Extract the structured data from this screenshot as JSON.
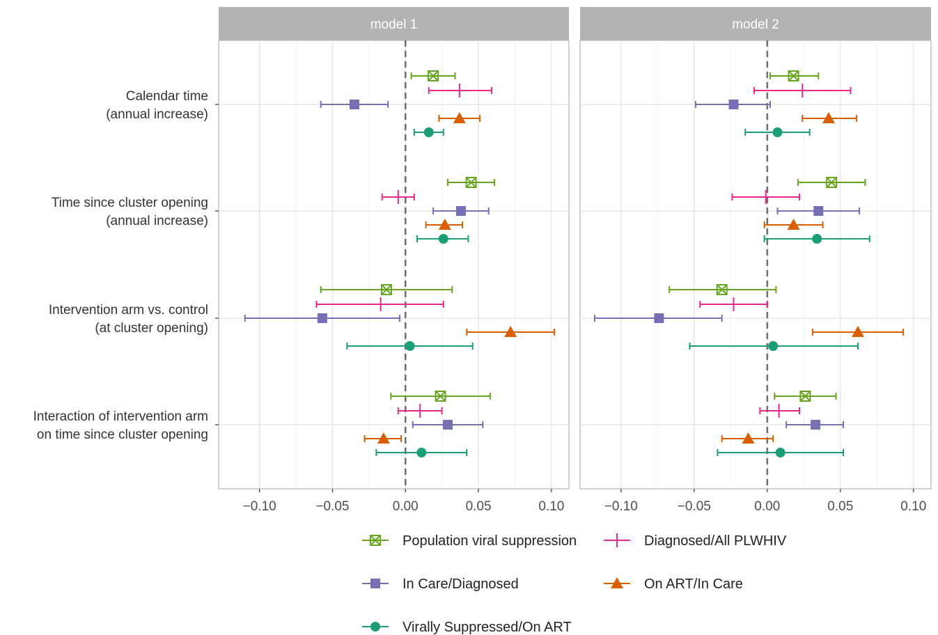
{
  "chart_data": {
    "type": "forest",
    "x_ticks": [
      "−0.10",
      "−0.05",
      "0.00",
      "0.05",
      "0.10"
    ],
    "x_tick_values": [
      -0.1,
      -0.05,
      0.0,
      0.05,
      0.1
    ],
    "xlim": [
      -0.128,
      0.112
    ],
    "reference_line": 0,
    "grid": true,
    "legend_position": "bottom",
    "categories": [
      "Calendar time\n(annual increase)",
      "Time since cluster opening\n(annual increase)",
      "Intervention arm vs. control\n(at cluster opening)",
      "Interaction of intervention arm\non time since cluster opening"
    ],
    "series": [
      {
        "name": "Population viral suppression",
        "color": "#66a61e",
        "marker": "boxed-x"
      },
      {
        "name": "Diagnosed/All PLWHIV",
        "color": "#e7298a",
        "marker": "bar"
      },
      {
        "name": "In Care/Diagnosed",
        "color": "#7570b3",
        "marker": "square"
      },
      {
        "name": "On ART/In Care",
        "color": "#d95f02",
        "marker": "triangle"
      },
      {
        "name": "Virally Suppressed/On ART",
        "color": "#1b9e77",
        "marker": "circle"
      }
    ],
    "panels": [
      {
        "title": "model 1",
        "estimates": [
          [
            [
              0.019,
              0.004,
              0.034
            ],
            [
              0.037,
              0.016,
              0.059
            ],
            [
              -0.035,
              -0.058,
              -0.012
            ],
            [
              0.037,
              0.023,
              0.051
            ],
            [
              0.016,
              0.006,
              0.026
            ]
          ],
          [
            [
              0.045,
              0.029,
              0.061
            ],
            [
              -0.005,
              -0.016,
              0.006
            ],
            [
              0.038,
              0.019,
              0.057
            ],
            [
              0.027,
              0.014,
              0.039
            ],
            [
              0.026,
              0.008,
              0.043
            ]
          ],
          [
            [
              -0.013,
              -0.058,
              0.032
            ],
            [
              -0.017,
              -0.061,
              0.026
            ],
            [
              -0.057,
              -0.11,
              -0.004
            ],
            [
              0.072,
              0.042,
              0.102
            ],
            [
              0.003,
              -0.04,
              0.046
            ]
          ],
          [
            [
              0.024,
              -0.01,
              0.058
            ],
            [
              0.01,
              -0.005,
              0.025
            ],
            [
              0.029,
              0.005,
              0.053
            ],
            [
              -0.015,
              -0.028,
              -0.003
            ],
            [
              0.011,
              -0.02,
              0.042
            ]
          ]
        ]
      },
      {
        "title": "model 2",
        "estimates": [
          [
            [
              0.018,
              0.002,
              0.035
            ],
            [
              0.024,
              -0.009,
              0.057
            ],
            [
              -0.023,
              -0.049,
              0.002
            ],
            [
              0.042,
              0.024,
              0.061
            ],
            [
              0.007,
              -0.015,
              0.029
            ]
          ],
          [
            [
              0.044,
              0.021,
              0.067
            ],
            [
              -0.001,
              -0.024,
              0.022
            ],
            [
              0.035,
              0.007,
              0.063
            ],
            [
              0.018,
              -0.002,
              0.038
            ],
            [
              0.034,
              -0.002,
              0.07
            ]
          ],
          [
            [
              -0.031,
              -0.067,
              0.006
            ],
            [
              -0.023,
              -0.046,
              0.0
            ],
            [
              -0.074,
              -0.118,
              -0.031
            ],
            [
              0.062,
              0.031,
              0.093
            ],
            [
              0.004,
              -0.053,
              0.062
            ]
          ],
          [
            [
              0.026,
              0.005,
              0.047
            ],
            [
              0.008,
              -0.005,
              0.022
            ],
            [
              0.033,
              0.013,
              0.052
            ],
            [
              -0.013,
              -0.031,
              0.004
            ],
            [
              0.009,
              -0.034,
              0.052
            ]
          ]
        ]
      }
    ]
  }
}
